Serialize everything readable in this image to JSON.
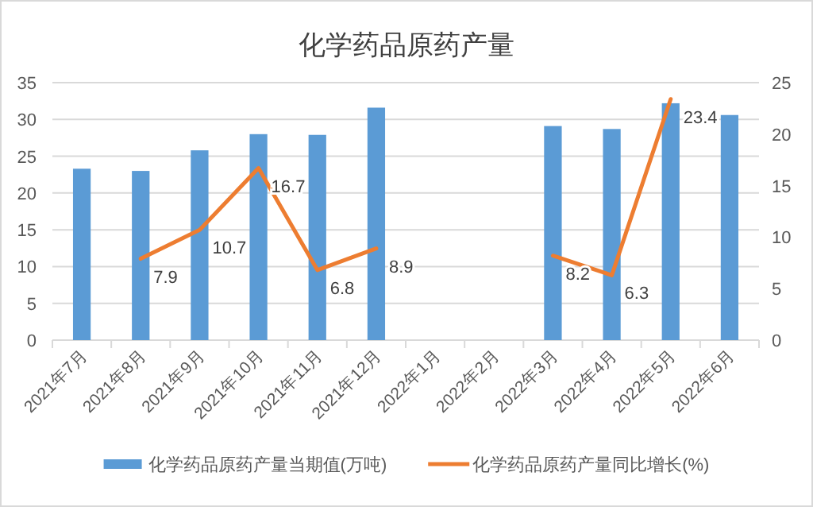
{
  "chart_data": {
    "type": "bar",
    "title": "化学药品原药产量",
    "categories": [
      "2021年7月",
      "2021年8月",
      "2021年9月",
      "2021年10月",
      "2021年11月",
      "2021年12月",
      "2022年1月",
      "2022年2月",
      "2022年3月",
      "2022年4月",
      "2022年5月",
      "2022年6月"
    ],
    "series": [
      {
        "name": "化学药品原药产量当期值(万吨)",
        "color": "#5b9bd5",
        "values": [
          23.3,
          23.0,
          25.8,
          28.0,
          27.9,
          31.6,
          null,
          null,
          29.1,
          28.7,
          32.2,
          30.6
        ]
      },
      {
        "name": "化学药品原药产量同比增长(%)",
        "type": "line",
        "axis": "y2",
        "color": "#ed7d31",
        "values": [
          null,
          7.9,
          10.7,
          16.7,
          6.8,
          8.9,
          null,
          null,
          8.2,
          6.3,
          23.4,
          null
        ],
        "value_labels": [
          null,
          "7.9",
          "10.7",
          "16.7",
          "6.8",
          "8.9",
          null,
          null,
          "8.2",
          "6.3",
          "23.4",
          null
        ]
      }
    ],
    "ylim": [
      0,
      35
    ],
    "yticks": [
      0,
      5,
      10,
      15,
      20,
      25,
      30,
      35
    ],
    "y2lim": [
      0,
      25
    ],
    "y2ticks": [
      0,
      5,
      10,
      15,
      20,
      25
    ],
    "grid": "y",
    "legend": "bottom"
  }
}
